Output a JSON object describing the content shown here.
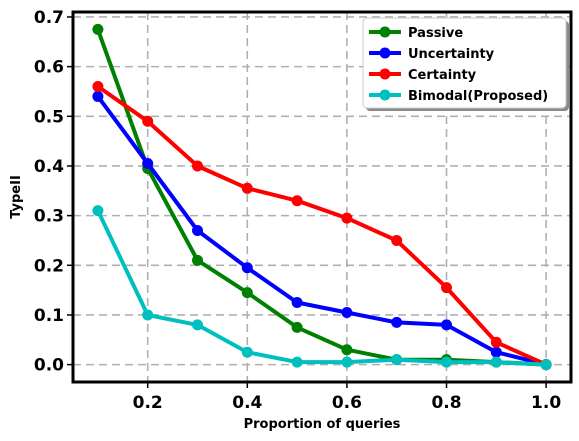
{
  "chart_data": {
    "type": "line",
    "xlabel": "Proportion of queries",
    "ylabel": "TypeII",
    "xlim": [
      0.05,
      1.05
    ],
    "ylim": [
      -0.035,
      0.71
    ],
    "xticks": [
      0.2,
      0.4,
      0.6,
      0.8,
      1.0
    ],
    "xtick_labels": [
      "0.2",
      "0.4",
      "0.6",
      "0.8",
      "1.0"
    ],
    "yticks": [
      0.0,
      0.1,
      0.2,
      0.3,
      0.4,
      0.5,
      0.6,
      0.7
    ],
    "ytick_labels": [
      "0.0",
      "0.1",
      "0.2",
      "0.3",
      "0.4",
      "0.5",
      "0.6",
      "0.7"
    ],
    "grid": true,
    "legend_position": "top-right",
    "x": [
      0.1,
      0.2,
      0.3,
      0.4,
      0.5,
      0.6,
      0.7,
      0.8,
      0.9,
      1.0
    ],
    "series": [
      {
        "name": "Passive",
        "color": "#008000",
        "values": [
          0.675,
          0.395,
          0.21,
          0.145,
          0.075,
          0.03,
          0.01,
          0.01,
          0.005,
          0.0
        ]
      },
      {
        "name": "Uncertainty",
        "color": "#0000ff",
        "values": [
          0.54,
          0.405,
          0.27,
          0.195,
          0.125,
          0.105,
          0.085,
          0.08,
          0.025,
          0.0
        ]
      },
      {
        "name": "Certainty",
        "color": "#ff0000",
        "values": [
          0.56,
          0.49,
          0.4,
          0.355,
          0.33,
          0.295,
          0.25,
          0.155,
          0.045,
          0.0
        ]
      },
      {
        "name": "Bimodal(Proposed)",
        "color": "#00bfbf",
        "values": [
          0.31,
          0.1,
          0.08,
          0.025,
          0.005,
          0.005,
          0.01,
          0.005,
          0.005,
          0.0
        ]
      }
    ]
  }
}
